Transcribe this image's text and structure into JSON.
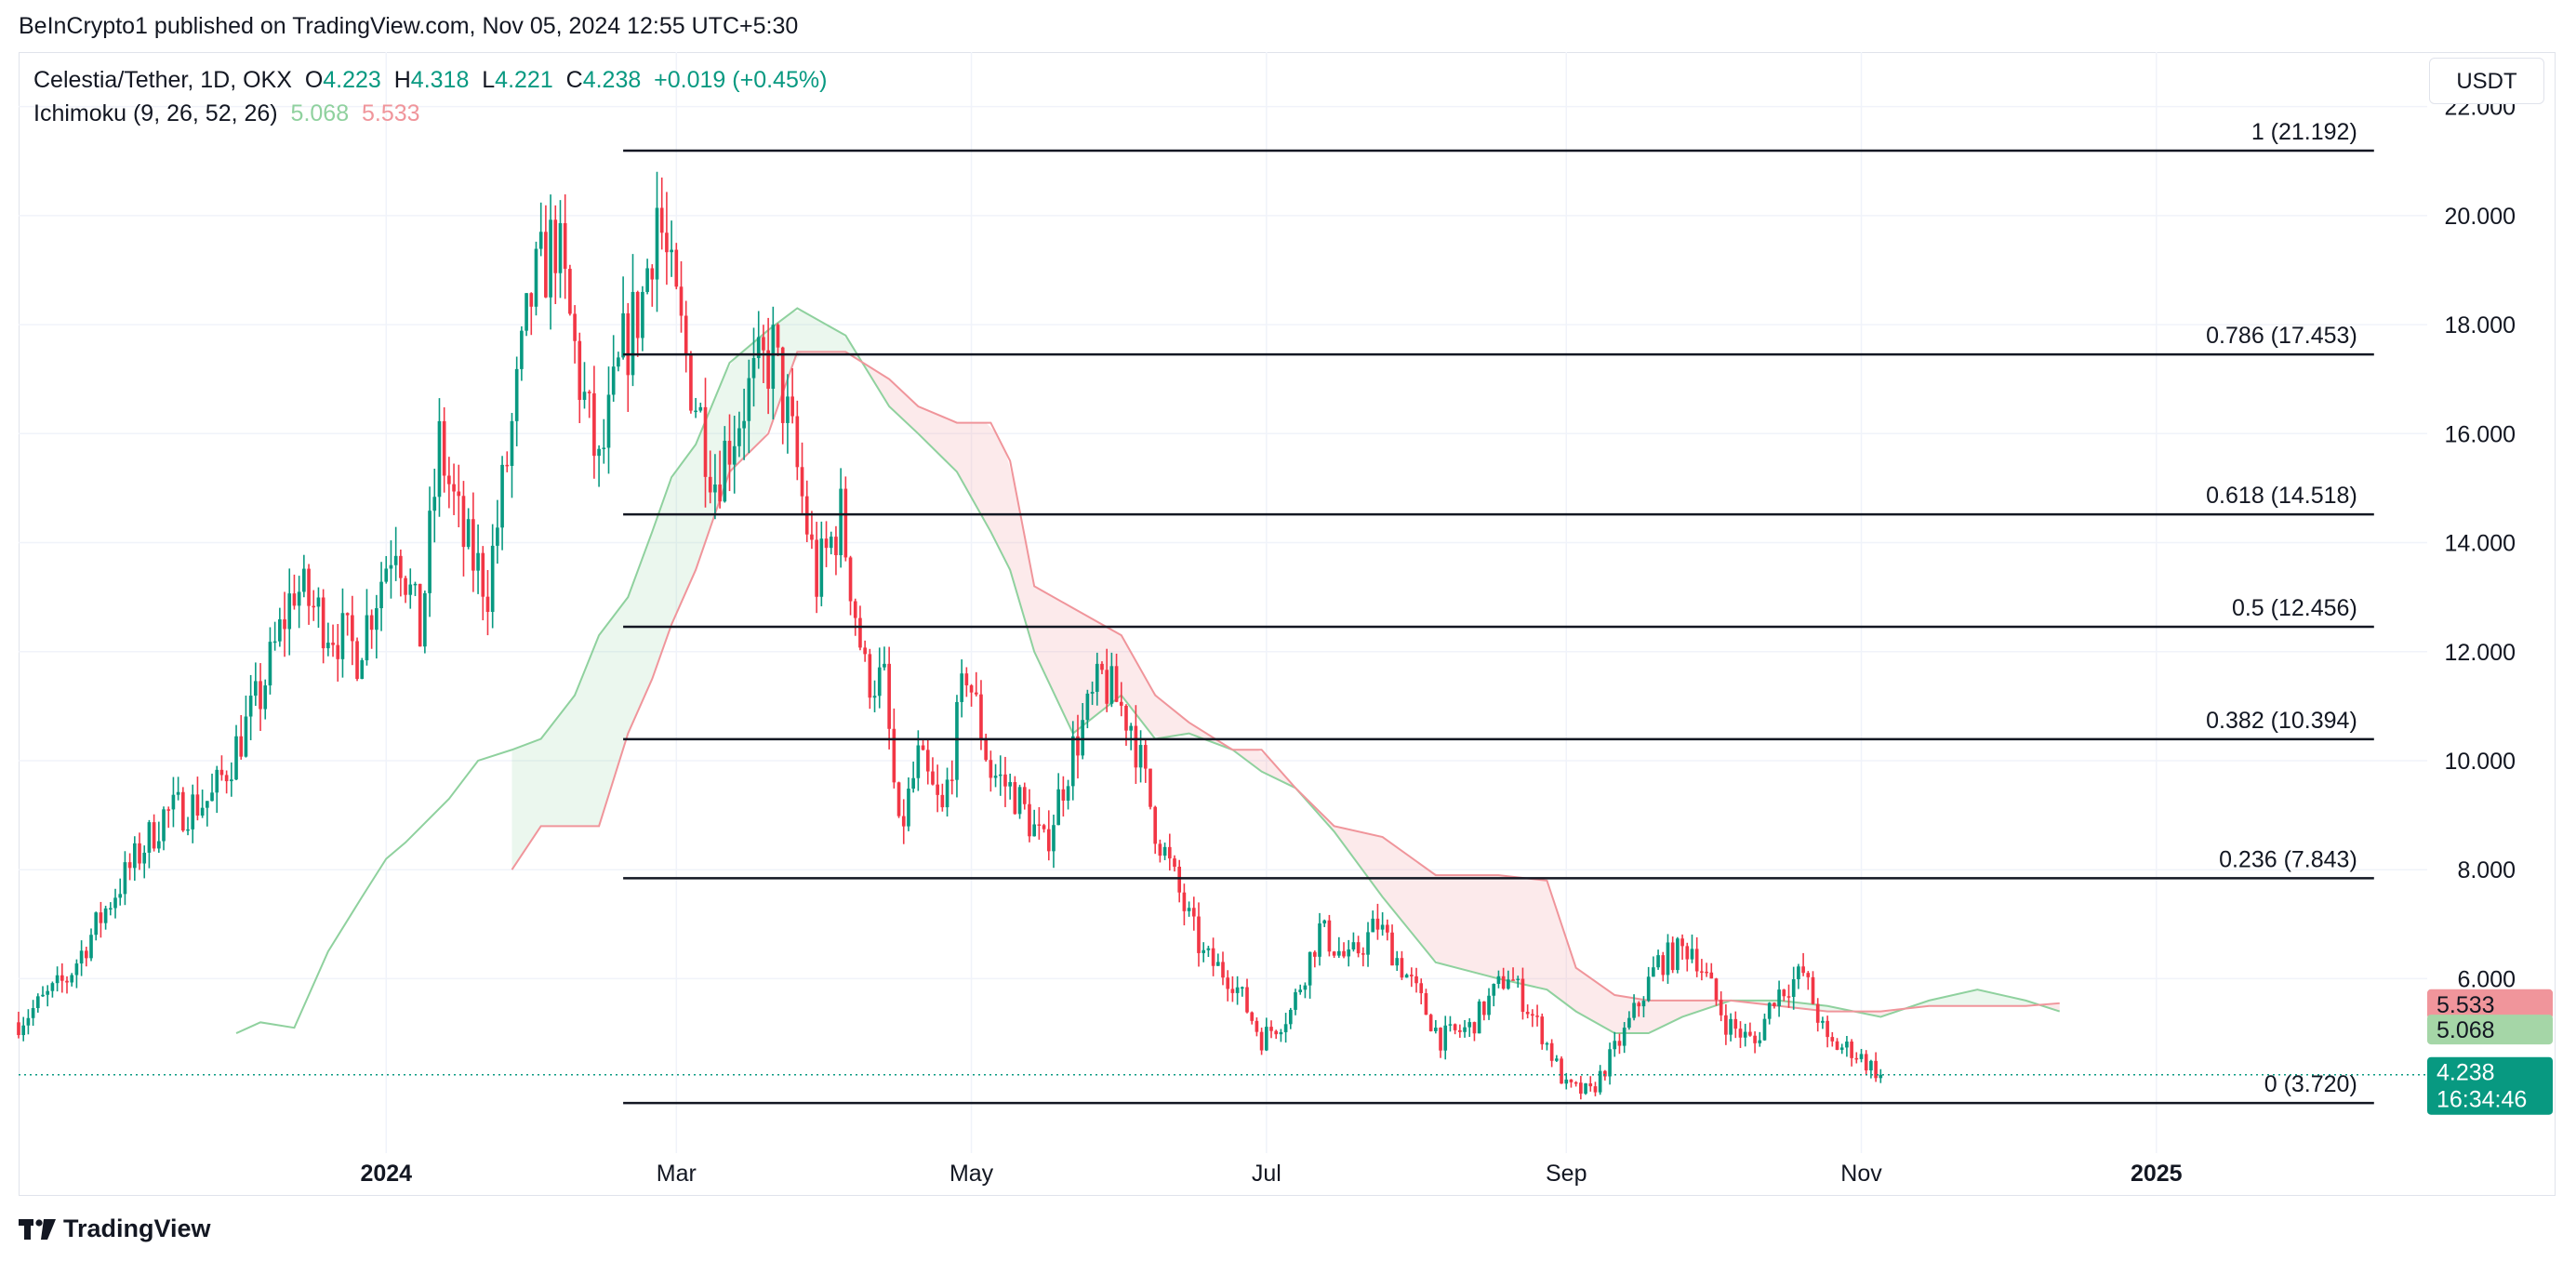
{
  "attribution": "BeInCrypto1 published on TradingView.com, Nov 05, 2024 12:55 UTC+5:30",
  "legend": {
    "symbol": "Celestia/Tether, 1D, OKX",
    "o_label": "O",
    "o_value": "4.223",
    "h_label": "H",
    "h_value": "4.318",
    "l_label": "L",
    "l_value": "4.221",
    "c_label": "C",
    "c_value": "4.238",
    "change": "+0.019 (+0.45%)",
    "ichimoku_label": "Ichimoku (9, 26, 52, 26)",
    "ichimoku_v1": "5.068",
    "ichimoku_v2": "5.533"
  },
  "currency": "USDT",
  "footer_brand": "TradingView",
  "colors": {
    "up": "#089981",
    "down": "#f23645",
    "cloud_green": "#8fd19e",
    "cloud_red": "#f0959b",
    "fib_line": "#131722"
  },
  "chart_data": {
    "type": "candlestick",
    "title": "Celestia/Tether, 1D, OKX",
    "y_axis": {
      "ticks": [
        "22.000",
        "20.000",
        "18.000",
        "16.000",
        "14.000",
        "12.000",
        "10.000",
        "8.000",
        "6.000"
      ],
      "ylim": [
        2.8,
        23.0
      ]
    },
    "x_axis": {
      "ticks": [
        {
          "label": "2024",
          "date": "2024-01-01",
          "bold": true
        },
        {
          "label": "Mar",
          "date": "2024-03-01",
          "bold": false
        },
        {
          "label": "May",
          "date": "2024-05-01",
          "bold": false
        },
        {
          "label": "Jul",
          "date": "2024-07-01",
          "bold": false
        },
        {
          "label": "Sep",
          "date": "2024-09-01",
          "bold": false
        },
        {
          "label": "Nov",
          "date": "2024-11-01",
          "bold": false
        },
        {
          "label": "2025",
          "date": "2025-01-01",
          "bold": true
        }
      ],
      "xlim": [
        "2023-10-17",
        "2025-02-26"
      ]
    },
    "price_path": [
      [
        "2023-10-17",
        5.2
      ],
      [
        "2023-10-27",
        6.0
      ],
      [
        "2023-11-06",
        7.6
      ],
      [
        "2023-11-16",
        9.0
      ],
      [
        "2023-11-26",
        9.3
      ],
      [
        "2023-12-06",
        11.2
      ],
      [
        "2023-12-13",
        13.2
      ],
      [
        "2023-12-20",
        12.5
      ],
      [
        "2023-12-26",
        12.0
      ],
      [
        "2024-01-03",
        14.2
      ],
      [
        "2024-01-08",
        12.3
      ],
      [
        "2024-01-12",
        15.8
      ],
      [
        "2024-01-17",
        14.0
      ],
      [
        "2024-01-22",
        13.2
      ],
      [
        "2024-01-26",
        15.5
      ],
      [
        "2024-01-31",
        18.5
      ],
      [
        "2024-02-05",
        19.6
      ],
      [
        "2024-02-10",
        17.0
      ],
      [
        "2024-02-14",
        15.3
      ],
      [
        "2024-02-19",
        17.5
      ],
      [
        "2024-02-23",
        18.5
      ],
      [
        "2024-02-26",
        20.2
      ],
      [
        "2024-02-29",
        18.6
      ],
      [
        "2024-03-04",
        17.0
      ],
      [
        "2024-03-09",
        15.2
      ],
      [
        "2024-03-15",
        16.6
      ],
      [
        "2024-03-21",
        17.5
      ],
      [
        "2024-03-25",
        15.8
      ],
      [
        "2024-03-30",
        13.3
      ],
      [
        "2024-04-04",
        14.5
      ],
      [
        "2024-04-09",
        11.6
      ],
      [
        "2024-04-13",
        11.4
      ],
      [
        "2024-04-16",
        8.6
      ],
      [
        "2024-04-20",
        10.0
      ],
      [
        "2024-04-25",
        9.0
      ],
      [
        "2024-04-30",
        11.7
      ],
      [
        "2024-05-05",
        9.8
      ],
      [
        "2024-05-10",
        9.4
      ],
      [
        "2024-05-16",
        8.4
      ],
      [
        "2024-05-22",
        10.2
      ],
      [
        "2024-05-28",
        11.5
      ],
      [
        "2024-06-03",
        10.7
      ],
      [
        "2024-06-08",
        8.8
      ],
      [
        "2024-06-14",
        7.3
      ],
      [
        "2024-06-18",
        6.4
      ],
      [
        "2024-06-24",
        6.0
      ],
      [
        "2024-06-30",
        4.9
      ],
      [
        "2024-07-06",
        5.4
      ],
      [
        "2024-07-12",
        6.9
      ],
      [
        "2024-07-18",
        6.3
      ],
      [
        "2024-07-24",
        7.0
      ],
      [
        "2024-07-31",
        5.9
      ],
      [
        "2024-08-06",
        4.9
      ],
      [
        "2024-08-12",
        5.1
      ],
      [
        "2024-08-20",
        6.1
      ],
      [
        "2024-08-27",
        5.0
      ],
      [
        "2024-09-01",
        4.0
      ],
      [
        "2024-09-06",
        3.9
      ],
      [
        "2024-09-13",
        5.0
      ],
      [
        "2024-09-20",
        6.3
      ],
      [
        "2024-09-27",
        6.6
      ],
      [
        "2024-10-04",
        5.2
      ],
      [
        "2024-10-10",
        4.8
      ],
      [
        "2024-10-14",
        5.7
      ],
      [
        "2024-10-20",
        6.1
      ],
      [
        "2024-10-25",
        4.8
      ],
      [
        "2024-10-30",
        4.7
      ],
      [
        "2024-11-05",
        4.238
      ]
    ],
    "ichimoku_cloud": {
      "span_a": [
        [
          "2023-12-01",
          5.0
        ],
        [
          "2023-12-06",
          5.2
        ],
        [
          "2023-12-13",
          5.1
        ],
        [
          "2023-12-20",
          6.5
        ],
        [
          "2023-12-27",
          7.5
        ],
        [
          "2024-01-01",
          8.2
        ],
        [
          "2024-01-05",
          8.5
        ],
        [
          "2024-01-14",
          9.3
        ],
        [
          "2024-01-20",
          10.0
        ],
        [
          "2024-01-27",
          10.2
        ],
        [
          "2024-02-02",
          10.4
        ],
        [
          "2024-02-09",
          11.2
        ],
        [
          "2024-02-14",
          12.3
        ],
        [
          "2024-02-20",
          13.0
        ],
        [
          "2024-02-25",
          14.2
        ],
        [
          "2024-02-29",
          15.2
        ],
        [
          "2024-03-05",
          15.8
        ],
        [
          "2024-03-12",
          17.3
        ],
        [
          "2024-03-20",
          17.9
        ],
        [
          "2024-03-26",
          18.3
        ],
        [
          "2024-04-05",
          17.8
        ],
        [
          "2024-04-14",
          16.5
        ],
        [
          "2024-04-20",
          16.0
        ],
        [
          "2024-04-28",
          15.3
        ],
        [
          "2024-05-05",
          14.2
        ],
        [
          "2024-05-09",
          13.5
        ],
        [
          "2024-05-14",
          12.0
        ],
        [
          "2024-05-22",
          10.5
        ],
        [
          "2024-06-01",
          11.2
        ],
        [
          "2024-06-08",
          10.4
        ],
        [
          "2024-06-15",
          10.5
        ],
        [
          "2024-06-24",
          10.2
        ],
        [
          "2024-06-30",
          9.8
        ],
        [
          "2024-07-07",
          9.5
        ],
        [
          "2024-07-15",
          8.7
        ],
        [
          "2024-07-25",
          7.5
        ],
        [
          "2024-08-05",
          6.3
        ],
        [
          "2024-08-18",
          6.0
        ],
        [
          "2024-08-28",
          5.8
        ],
        [
          "2024-09-03",
          5.4
        ],
        [
          "2024-09-11",
          5.0
        ],
        [
          "2024-09-18",
          5.0
        ],
        [
          "2024-09-25",
          5.3
        ],
        [
          "2024-10-05",
          5.6
        ],
        [
          "2024-10-15",
          5.6
        ],
        [
          "2024-10-25",
          5.5
        ],
        [
          "2024-11-05",
          5.3
        ],
        [
          "2024-11-15",
          5.6
        ],
        [
          "2024-11-25",
          5.8
        ],
        [
          "2024-12-05",
          5.6
        ],
        [
          "2024-12-12",
          5.4
        ]
      ],
      "span_b": [
        [
          "2024-01-27",
          8.0
        ],
        [
          "2024-02-02",
          8.8
        ],
        [
          "2024-02-09",
          8.8
        ],
        [
          "2024-02-14",
          8.8
        ],
        [
          "2024-02-20",
          10.5
        ],
        [
          "2024-02-25",
          11.5
        ],
        [
          "2024-02-29",
          12.5
        ],
        [
          "2024-03-05",
          13.5
        ],
        [
          "2024-03-12",
          15.3
        ],
        [
          "2024-03-20",
          16.0
        ],
        [
          "2024-03-26",
          17.5
        ],
        [
          "2024-04-05",
          17.5
        ],
        [
          "2024-04-14",
          17.0
        ],
        [
          "2024-04-20",
          16.5
        ],
        [
          "2024-04-28",
          16.2
        ],
        [
          "2024-05-05",
          16.2
        ],
        [
          "2024-05-09",
          15.5
        ],
        [
          "2024-05-14",
          13.2
        ],
        [
          "2024-05-22",
          12.8
        ],
        [
          "2024-06-01",
          12.3
        ],
        [
          "2024-06-08",
          11.2
        ],
        [
          "2024-06-15",
          10.7
        ],
        [
          "2024-06-24",
          10.2
        ],
        [
          "2024-06-30",
          10.2
        ],
        [
          "2024-07-07",
          9.5
        ],
        [
          "2024-07-15",
          8.8
        ],
        [
          "2024-07-25",
          8.6
        ],
        [
          "2024-08-05",
          7.9
        ],
        [
          "2024-08-18",
          7.9
        ],
        [
          "2024-08-28",
          7.8
        ],
        [
          "2024-09-03",
          6.2
        ],
        [
          "2024-09-11",
          5.7
        ],
        [
          "2024-09-18",
          5.6
        ],
        [
          "2024-09-25",
          5.6
        ],
        [
          "2024-10-05",
          5.6
        ],
        [
          "2024-10-15",
          5.5
        ],
        [
          "2024-10-25",
          5.4
        ],
        [
          "2024-11-05",
          5.4
        ],
        [
          "2024-11-15",
          5.5
        ],
        [
          "2024-11-25",
          5.5
        ],
        [
          "2024-12-05",
          5.5
        ],
        [
          "2024-12-12",
          5.55
        ]
      ]
    },
    "fib_levels": [
      {
        "level": "1",
        "value": 21.192,
        "label": "1 (21.192)"
      },
      {
        "level": "0.786",
        "value": 17.453,
        "label": "0.786 (17.453)"
      },
      {
        "level": "0.618",
        "value": 14.518,
        "label": "0.618 (14.518)"
      },
      {
        "level": "0.5",
        "value": 12.456,
        "label": "0.5 (12.456)"
      },
      {
        "level": "0.382",
        "value": 10.394,
        "label": "0.382 (10.394)"
      },
      {
        "level": "0.236",
        "value": 7.843,
        "label": "0.236 (7.843)"
      },
      {
        "level": "0",
        "value": 3.72,
        "label": "0 (3.720)"
      }
    ],
    "fib_start_date": "2024-02-19",
    "fib_end_date": "2025-02-15",
    "price_tags": [
      {
        "value": 5.533,
        "label": "5.533",
        "color": "#f0959b"
      },
      {
        "value": 5.068,
        "label": "5.068",
        "color": "#a5d6a7"
      },
      {
        "value": 4.238,
        "label": "4.238",
        "sublabel": "16:34:46",
        "color": "#089981"
      }
    ],
    "last_price": 4.238,
    "countdown": "16:34:46"
  }
}
